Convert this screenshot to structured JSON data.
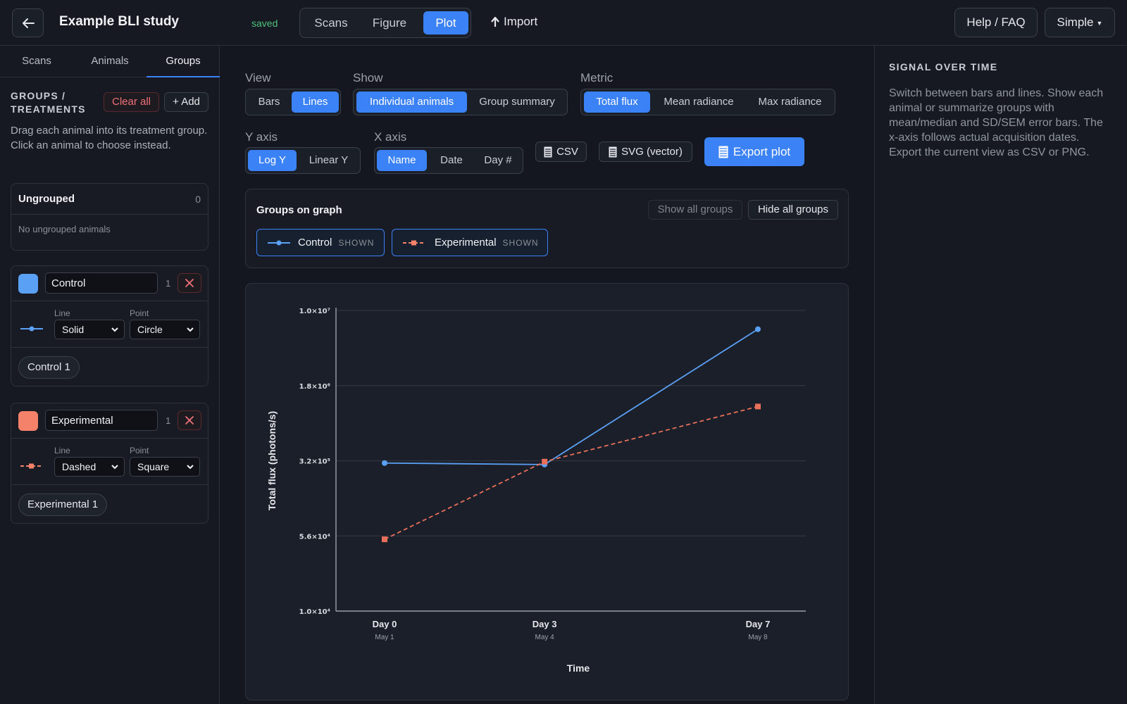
{
  "header": {
    "title": "Example BLI study",
    "saved": "saved",
    "modes": [
      "Scans",
      "Figure",
      "Plot"
    ],
    "active_mode": "Plot",
    "import_label": "Import",
    "help_label": "Help / FAQ",
    "ui_mode_label": "Simple"
  },
  "sidebar": {
    "tabs": [
      "Scans",
      "Animals",
      "Groups"
    ],
    "active_tab": "Groups",
    "heading": "GROUPS / TREATMENTS",
    "clear_all_label": "Clear all",
    "add_label": "+ Add",
    "help_text": "Drag each animal into its treatment group. Click an animal to choose instead.",
    "ungrouped": {
      "title": "Ungrouped",
      "count": "0",
      "empty_text": "No ungrouped animals"
    },
    "line_label": "Line",
    "point_label": "Point",
    "groups": [
      {
        "name": "Control",
        "count": "1",
        "color": "#5aa0f5",
        "line_style": "Solid",
        "point_style": "Circle",
        "animals": [
          "Control 1"
        ]
      },
      {
        "name": "Experimental",
        "count": "1",
        "color": "#f4826a",
        "line_style": "Dashed",
        "point_style": "Square",
        "animals": [
          "Experimental 1"
        ]
      }
    ]
  },
  "controls": {
    "view": {
      "label": "View",
      "options": [
        "Bars",
        "Lines"
      ],
      "selected": "Lines"
    },
    "show": {
      "label": "Show",
      "options": [
        "Individual animals",
        "Group summary"
      ],
      "selected": "Individual animals"
    },
    "metric": {
      "label": "Metric",
      "options": [
        "Total flux",
        "Mean radiance",
        "Max radiance"
      ],
      "selected": "Total flux"
    },
    "y_axis": {
      "label": "Y axis",
      "options": [
        "Log Y",
        "Linear Y"
      ],
      "selected": "Log Y"
    },
    "x_axis": {
      "label": "X axis",
      "options": [
        "Name",
        "Date",
        "Day #"
      ],
      "selected": "Name"
    },
    "csv_label": "CSV",
    "svg_label": "SVG (vector)",
    "export_label": "Export plot"
  },
  "groups_panel": {
    "title": "Groups on graph",
    "show_all_label": "Show all groups",
    "hide_all_label": "Hide all groups",
    "chips": [
      {
        "name": "Control",
        "state": "SHOWN",
        "color": "#5aa0f5"
      },
      {
        "name": "Experimental",
        "state": "SHOWN",
        "color": "#f4826a"
      }
    ]
  },
  "chart_data": {
    "type": "line",
    "xlabel": "Time",
    "ylabel": "Total flux (photons/s)",
    "yscale": "log",
    "ylim": [
      10000,
      10000000
    ],
    "y_ticks": [
      "1.0×10⁴",
      "5.6×10⁴",
      "3.2×10⁵",
      "1.8×10⁶",
      "1.0×10⁷"
    ],
    "categories": [
      "Day 0",
      "Day 3",
      "Day 7"
    ],
    "category_sublabels": [
      "May 1",
      "May 4",
      "May 8"
    ],
    "x_days": [
      0,
      3,
      7
    ],
    "grid": true,
    "series": [
      {
        "name": "Control",
        "color": "#5aa0f5",
        "line": "solid",
        "marker": "circle",
        "values": [
          300000,
          290000,
          6500000
        ]
      },
      {
        "name": "Experimental",
        "color": "#e8705a",
        "line": "dashed",
        "marker": "square",
        "values": [
          52000,
          310000,
          1100000
        ]
      }
    ]
  },
  "right_panel": {
    "title": "SIGNAL OVER TIME",
    "text": "Switch between bars and lines. Show each animal or summarize groups with mean/median and SD/SEM error bars. The x-axis follows actual acquisition dates. Export the current view as CSV or PNG."
  }
}
